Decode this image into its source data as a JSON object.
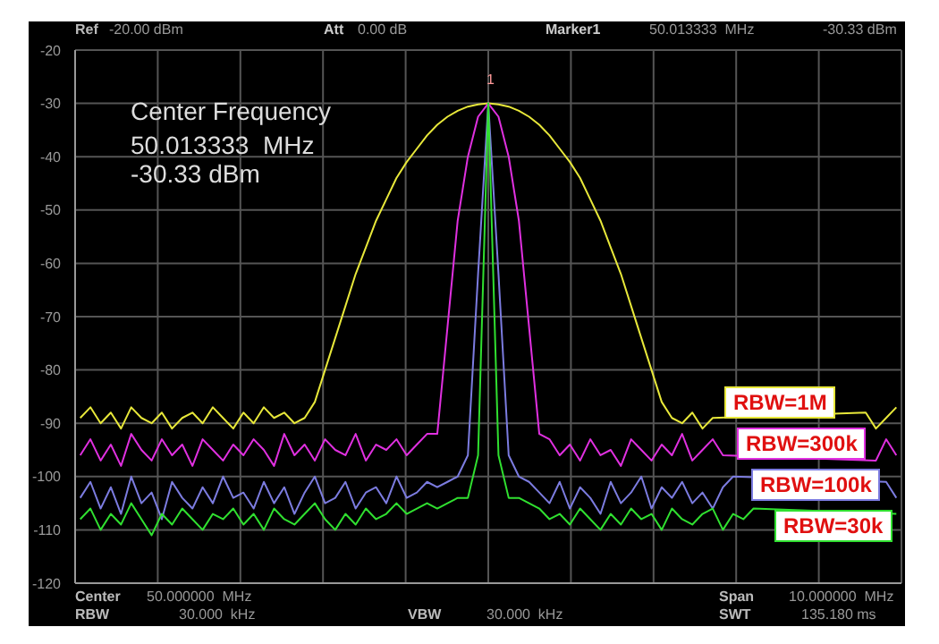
{
  "chart_data": {
    "type": "line",
    "categories": [
      null,
      null,
      null,
      null,
      null,
      null,
      null,
      null,
      null,
      null,
      null,
      null,
      null,
      null,
      null,
      null,
      null,
      null,
      null,
      null,
      null,
      null,
      null,
      null,
      null,
      null,
      null,
      null,
      null,
      null,
      null,
      null,
      null,
      null,
      null,
      null,
      null,
      null,
      null,
      null,
      null,
      null,
      null,
      null,
      null,
      null,
      null,
      null,
      null,
      null,
      null,
      null,
      null,
      null,
      null,
      null,
      null,
      null,
      null,
      null,
      null,
      null,
      null,
      null,
      null,
      null,
      null,
      null,
      null,
      null,
      null,
      null,
      null,
      null,
      null,
      null,
      null,
      null,
      null,
      null,
      null
    ],
    "ylim": [
      -120,
      -20
    ],
    "yticks": [
      -120,
      -110,
      -100,
      -90,
      -80,
      -70,
      -60,
      -50,
      -40,
      -30,
      -20
    ],
    "grid": true,
    "legend": "right",
    "tick_labels": "y",
    "marker": "none",
    "line_style": "solid",
    "series": [
      {
        "name": "RBW=1M",
        "color": "#e8e83a",
        "values": [
          -89,
          -87,
          -90,
          -88,
          -91,
          -87,
          -89,
          -90,
          -88,
          -91,
          -89,
          -88,
          -90,
          -87,
          -89,
          -91,
          -88,
          -90,
          -87,
          -89,
          -88,
          -90,
          -89,
          -86,
          -80,
          -74,
          -68,
          -62,
          -57,
          -52,
          -48,
          -44,
          -41,
          -38.5,
          -36,
          -34,
          -32.5,
          -31.4,
          -30.6,
          -30.2,
          -30,
          -30.2,
          -30.6,
          -31.4,
          -32.5,
          -34,
          -36,
          -38.5,
          -41,
          -44,
          -48,
          -52,
          -57,
          -62,
          -68,
          -74,
          -80,
          -86,
          -89,
          -90,
          -88,
          -91,
          -89,
          null,
          null,
          null,
          null,
          null,
          null,
          null,
          null,
          null,
          null,
          null,
          null,
          null,
          null,
          -88,
          -91,
          -89,
          -87
        ]
      },
      {
        "name": "RBW=300k",
        "color": "#e030e0",
        "values": [
          -96,
          -93,
          -97,
          -94,
          -98,
          -92,
          -95,
          -97,
          -93,
          -96,
          -94,
          -98,
          -93,
          -95,
          -97,
          -94,
          -96,
          -93,
          -95,
          -98,
          -92,
          -96,
          -94,
          -97,
          -93,
          -95,
          -96,
          -92,
          -97,
          -94,
          -95,
          -93,
          -96,
          -94,
          -92,
          -92,
          -72,
          -52,
          -40,
          -32.5,
          -30,
          -32.5,
          -40,
          -52,
          -72,
          -92,
          -93,
          -96,
          -94,
          -97,
          -93,
          -96,
          -95,
          -98,
          -93,
          -95,
          -97,
          -94,
          -96,
          -92,
          -97,
          -95,
          -93,
          -96,
          null,
          null,
          null,
          null,
          null,
          null,
          null,
          null,
          null,
          null,
          null,
          null,
          null,
          null,
          -97,
          -93,
          -96
        ]
      },
      {
        "name": "RBW=100k",
        "color": "#7c7ce0",
        "values": [
          -104,
          -101,
          -106,
          -102,
          -107,
          -100,
          -105,
          -103,
          -108,
          -101,
          -104,
          -106,
          -102,
          -105,
          -100,
          -104,
          -103,
          -106,
          -101,
          -105,
          -102,
          -107,
          -103,
          -100,
          -105,
          -104,
          -101,
          -106,
          -103,
          -102,
          -105,
          -100,
          -104,
          -103,
          -101,
          -102,
          -101,
          -100,
          -96,
          -62,
          -30,
          -62,
          -96,
          -100,
          -101,
          -103,
          -105,
          -101,
          -106,
          -102,
          -104,
          -107,
          -101,
          -105,
          -103,
          -100,
          -106,
          -102,
          -104,
          -101,
          -105,
          -103,
          -106,
          -102,
          -100,
          null,
          null,
          null,
          null,
          null,
          null,
          null,
          null,
          null,
          null,
          null,
          null,
          null,
          null,
          -101,
          -104
        ]
      },
      {
        "name": "RBW=30k",
        "color": "#30e030",
        "values": [
          -108,
          -106,
          -110,
          -107,
          -109,
          -105,
          -108,
          -111,
          -107,
          -109,
          -106,
          -108,
          -110,
          -107,
          -108,
          -106,
          -109,
          -107,
          -110,
          -106,
          -108,
          -109,
          -107,
          -105,
          -108,
          -110,
          -107,
          -109,
          -106,
          -108,
          -107,
          -105,
          -107,
          -106,
          -105,
          -106,
          -105,
          -104,
          -104,
          -96,
          -30,
          -96,
          -104,
          -104,
          -105,
          -106,
          -108,
          -107,
          -109,
          -106,
          -108,
          -110,
          -107,
          -109,
          -106,
          -108,
          -107,
          -110,
          -106,
          -108,
          -109,
          -107,
          -106,
          -110,
          -107,
          -108,
          -106,
          null,
          null,
          null,
          null,
          null,
          null,
          null,
          null,
          null,
          null,
          null,
          null,
          null,
          -107
        ]
      }
    ],
    "annotations": [
      "Ref",
      "-20.00 dBm",
      "Att",
      "0.00 dB",
      "Marker1",
      "50.013333  MHz",
      "-30.33 dBm",
      "Center Frequency",
      "50.013333  MHz",
      "-30.33 dBm",
      "Center",
      "50.000000  MHz",
      "RBW",
      "30.000  kHz",
      "VBW",
      "30.000  kHz",
      "Span",
      "10.000000  MHz",
      "SWT",
      "135.180 ms",
      "1"
    ]
  }
}
